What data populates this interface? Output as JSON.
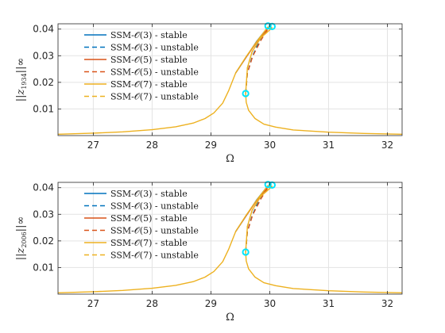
{
  "chart_data": [
    {
      "type": "line",
      "xlabel": "Ω",
      "ylabel_main": "||z",
      "ylabel_sub": "1934",
      "ylabel_tail": "||∞",
      "xlim": [
        26.4,
        32.25
      ],
      "ylim": [
        0,
        0.042
      ],
      "xticks": [
        27,
        28,
        29,
        30,
        31,
        32
      ],
      "yticks": [
        0.01,
        0.02,
        0.03,
        0.04
      ],
      "ytick_labels": [
        "0.01",
        "0.02",
        "0.03",
        "0.04"
      ],
      "grid": true,
      "legend_position": "top-left",
      "series": [
        {
          "name": "SSM-𝒪(3) - stable",
          "color": "#0072BD",
          "dash": false,
          "x": [
            29.42,
            29.6,
            29.78,
            29.96
          ],
          "y": [
            0.0235,
            0.0295,
            0.0355,
            0.0405
          ]
        },
        {
          "name": "SSM-𝒪(3) - unstable",
          "color": "#0072BD",
          "dash": true,
          "x": [
            29.59,
            29.62,
            29.7,
            29.82,
            29.96
          ],
          "y": [
            0.0158,
            0.0235,
            0.0295,
            0.0355,
            0.0405
          ]
        },
        {
          "name": "SSM-𝒪(5) - stable",
          "color": "#D95319",
          "dash": false,
          "x": [
            29.42,
            29.6,
            29.8,
            29.99
          ],
          "y": [
            0.0235,
            0.0295,
            0.0358,
            0.0408
          ]
        },
        {
          "name": "SSM-𝒪(5) - unstable",
          "color": "#D95319",
          "dash": true,
          "x": [
            29.59,
            29.62,
            29.71,
            29.85,
            29.99
          ],
          "y": [
            0.0158,
            0.0235,
            0.0298,
            0.0358,
            0.0408
          ]
        },
        {
          "name": "SSM-𝒪(7) - stable",
          "color": "#EDB120",
          "dash": false,
          "x": [
            26.4,
            27.0,
            27.5,
            28.0,
            28.4,
            28.7,
            28.9,
            29.05,
            29.2,
            29.3,
            29.42,
            29.6,
            29.8,
            29.97,
            30.04,
            29.85,
            29.7,
            29.62,
            29.59,
            29.6,
            29.64,
            29.75,
            29.9,
            30.1,
            30.4,
            31.0,
            31.6,
            32.25
          ],
          "y": [
            0.0005,
            0.0009,
            0.0014,
            0.0022,
            0.0033,
            0.0047,
            0.0064,
            0.0085,
            0.0122,
            0.0168,
            0.0235,
            0.0297,
            0.036,
            0.0408,
            0.0405,
            0.0368,
            0.0315,
            0.0255,
            0.0158,
            0.0125,
            0.0095,
            0.0064,
            0.0043,
            0.0032,
            0.0021,
            0.0013,
            0.0008,
            0.0005
          ]
        },
        {
          "name": "SSM-𝒪(7) - unstable",
          "color": "#EDB120",
          "dash": true,
          "x": [
            29.59,
            29.62,
            29.7,
            29.85,
            30.04
          ],
          "y": [
            0.0158,
            0.0255,
            0.0315,
            0.0368,
            0.0405
          ]
        }
      ],
      "markers": {
        "color": "#00E5FF",
        "points": [
          {
            "x": 29.59,
            "y": 0.0158
          },
          {
            "x": 29.97,
            "y": 0.0412
          },
          {
            "x": 30.04,
            "y": 0.041
          }
        ]
      }
    },
    {
      "type": "line",
      "xlabel": "Ω",
      "ylabel_main": "||z",
      "ylabel_sub": "2006",
      "ylabel_tail": "||∞",
      "xlim": [
        26.4,
        32.25
      ],
      "ylim": [
        0,
        0.042
      ],
      "xticks": [
        27,
        28,
        29,
        30,
        31,
        32
      ],
      "yticks": [
        0.01,
        0.02,
        0.03,
        0.04
      ],
      "ytick_labels": [
        "0.01",
        "0.02",
        "0.03",
        "0.04"
      ],
      "grid": true,
      "legend_position": "top-left",
      "series": [
        {
          "name": "SSM-𝒪(3) - stable",
          "color": "#0072BD",
          "dash": false,
          "x": [
            29.42,
            29.6,
            29.78,
            29.96
          ],
          "y": [
            0.0235,
            0.0295,
            0.0355,
            0.0405
          ]
        },
        {
          "name": "SSM-𝒪(3) - unstable",
          "color": "#0072BD",
          "dash": true,
          "x": [
            29.59,
            29.62,
            29.7,
            29.82,
            29.96
          ],
          "y": [
            0.0158,
            0.0235,
            0.0295,
            0.0355,
            0.0405
          ]
        },
        {
          "name": "SSM-𝒪(5) - stable",
          "color": "#D95319",
          "dash": false,
          "x": [
            29.42,
            29.6,
            29.8,
            29.99
          ],
          "y": [
            0.0235,
            0.0295,
            0.0358,
            0.0408
          ]
        },
        {
          "name": "SSM-𝒪(5) - unstable",
          "color": "#D95319",
          "dash": true,
          "x": [
            29.59,
            29.62,
            29.71,
            29.85,
            29.99
          ],
          "y": [
            0.0158,
            0.0235,
            0.0298,
            0.0358,
            0.0408
          ]
        },
        {
          "name": "SSM-𝒪(7) - stable",
          "color": "#EDB120",
          "dash": false,
          "x": [
            26.4,
            27.0,
            27.5,
            28.0,
            28.4,
            28.7,
            28.9,
            29.05,
            29.2,
            29.3,
            29.42,
            29.6,
            29.8,
            29.97,
            30.04,
            29.85,
            29.7,
            29.62,
            29.59,
            29.6,
            29.64,
            29.75,
            29.9,
            30.1,
            30.4,
            31.0,
            31.6,
            32.25
          ],
          "y": [
            0.0005,
            0.0009,
            0.0014,
            0.0022,
            0.0033,
            0.0047,
            0.0064,
            0.0085,
            0.0122,
            0.0168,
            0.0235,
            0.0297,
            0.036,
            0.0408,
            0.0405,
            0.0368,
            0.0315,
            0.0255,
            0.0158,
            0.0125,
            0.0095,
            0.0064,
            0.0043,
            0.0032,
            0.0021,
            0.0013,
            0.0008,
            0.0005
          ]
        },
        {
          "name": "SSM-𝒪(7) - unstable",
          "color": "#EDB120",
          "dash": true,
          "x": [
            29.59,
            29.62,
            29.7,
            29.85,
            30.04
          ],
          "y": [
            0.0158,
            0.0255,
            0.0315,
            0.0368,
            0.0405
          ]
        }
      ],
      "markers": {
        "color": "#00E5FF",
        "points": [
          {
            "x": 29.59,
            "y": 0.0158
          },
          {
            "x": 29.97,
            "y": 0.0412
          },
          {
            "x": 30.04,
            "y": 0.041
          }
        ]
      }
    }
  ]
}
